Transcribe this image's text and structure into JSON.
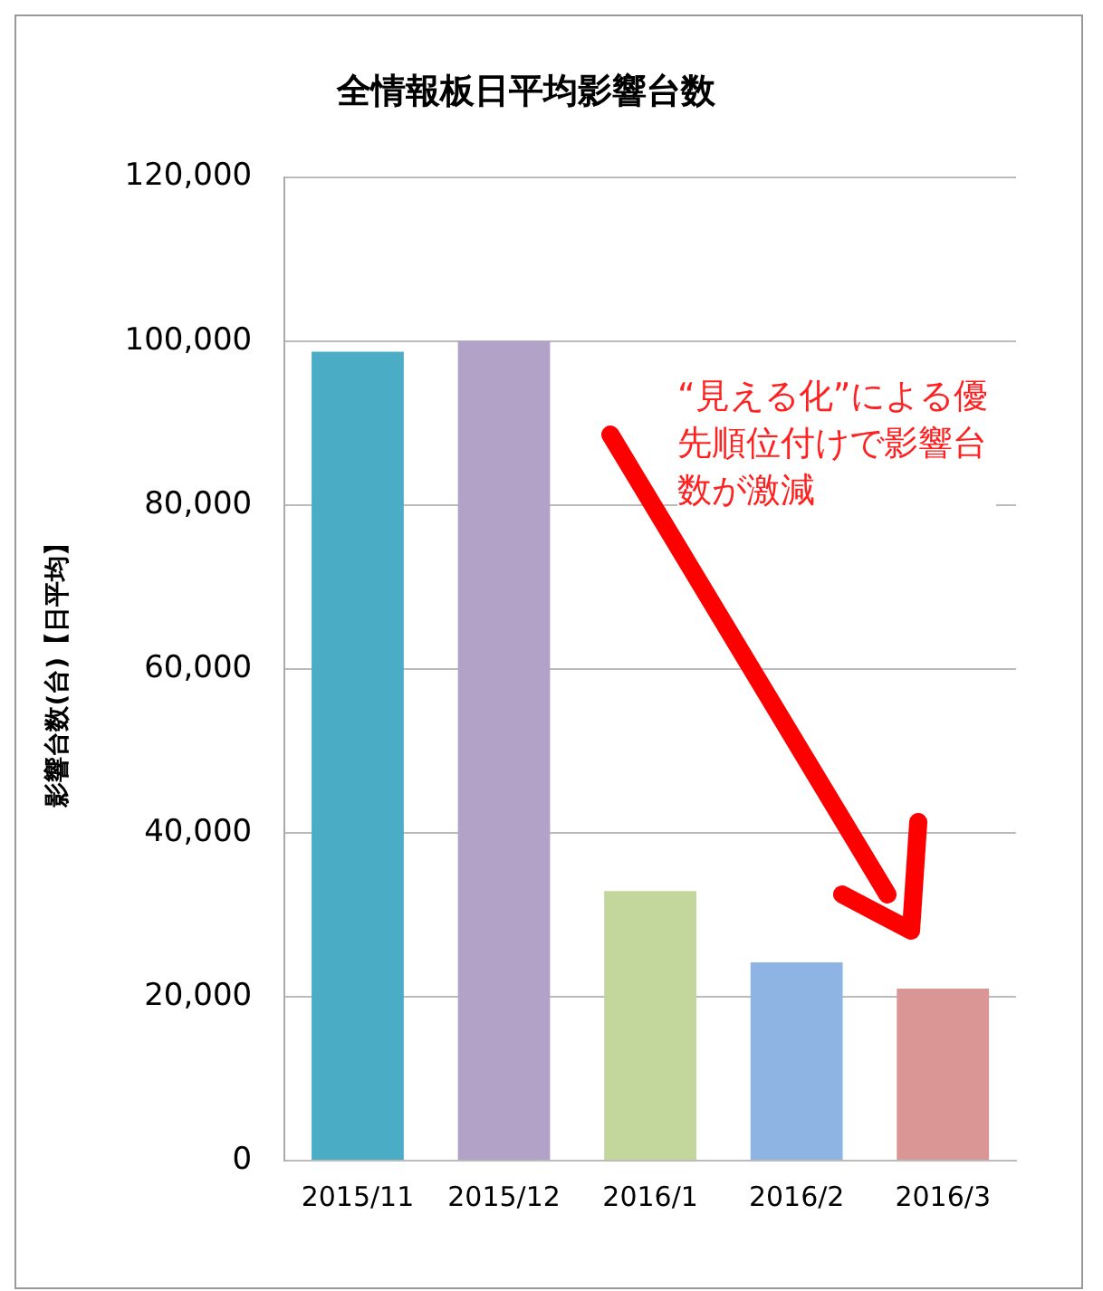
{
  "chart_data": {
    "type": "bar",
    "title": "全情報板日平均影響台数",
    "ylabel": "影響台数(台)【日平均】",
    "categories": [
      "2015/11",
      "2015/12",
      "2016/1",
      "2016/2",
      "2016/3"
    ],
    "values": [
      98700,
      100000,
      32900,
      24200,
      21000
    ],
    "colors": [
      "#4bacc6",
      "#b3a2c7",
      "#c3d69b",
      "#8eb4e3",
      "#d99694"
    ],
    "ylim": [
      0,
      120000
    ],
    "yticks": [
      0,
      {
        "value": 20000,
        "label": "20,000"
      },
      {
        "value": 40000,
        "label": "40,000"
      },
      {
        "value": 60000,
        "label": "60,000"
      },
      {
        "value": 80000,
        "label": "80,000"
      },
      {
        "value": 100000,
        "label": "100,000"
      },
      {
        "value": 120000,
        "label": "120,000"
      }
    ],
    "grid": "y",
    "legend": false,
    "annotations": [
      "“見える化”による優先順位付けで影響台数が激減"
    ]
  }
}
